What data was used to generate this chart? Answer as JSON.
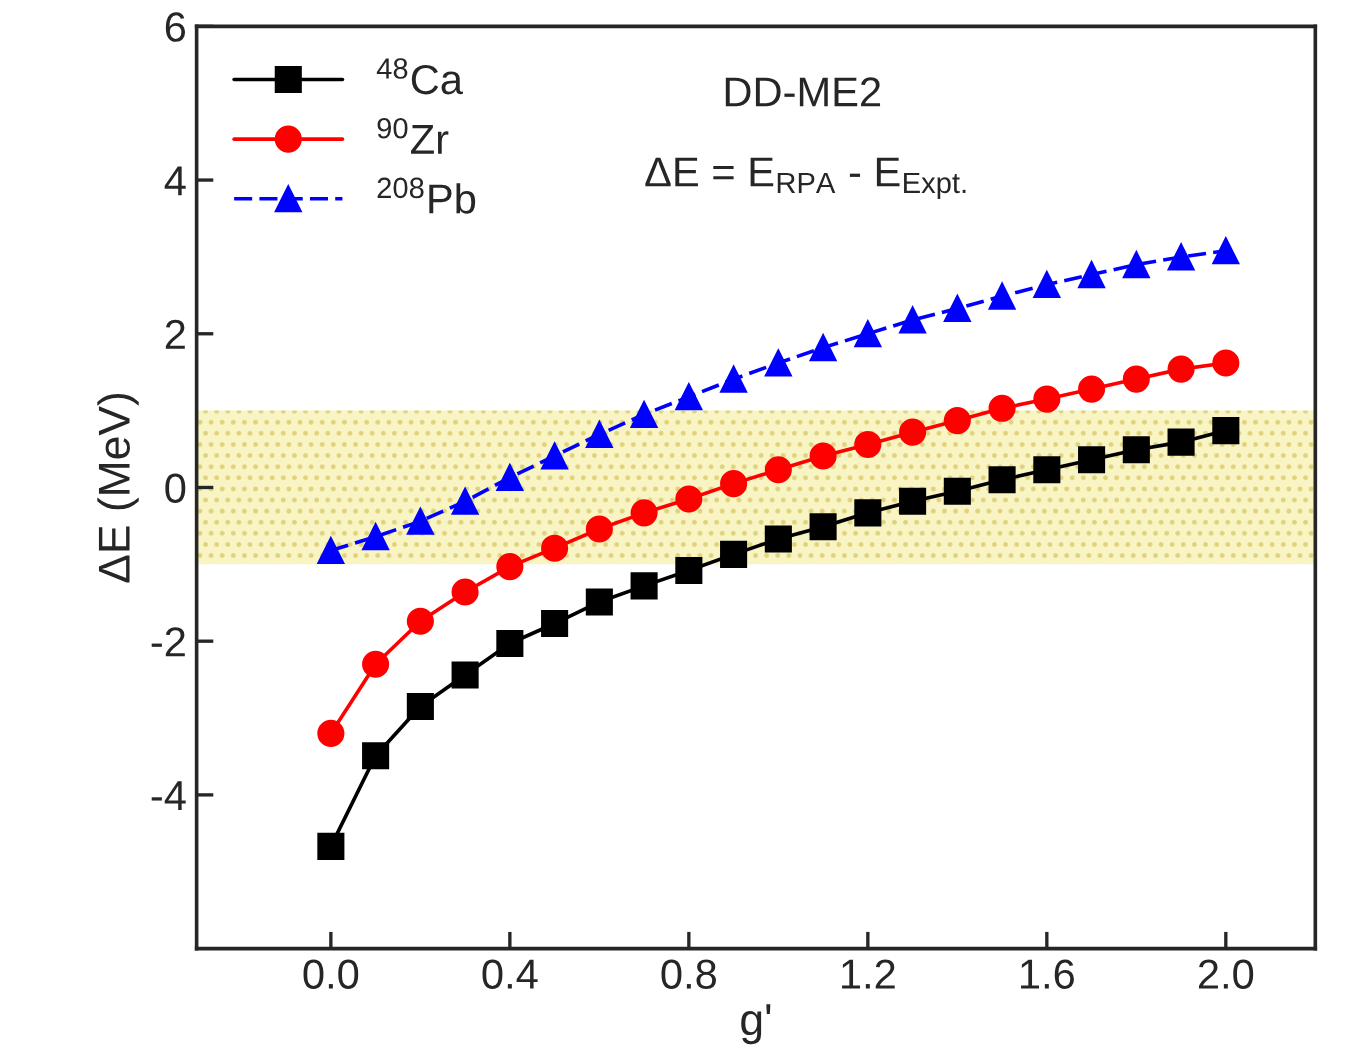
{
  "chart_data": {
    "type": "line",
    "xlabel": "g'",
    "ylabel": "ΔE (MeV)",
    "x": [
      0.0,
      0.1,
      0.2,
      0.3,
      0.4,
      0.5,
      0.6,
      0.7,
      0.8,
      0.9,
      1.0,
      1.1,
      1.2,
      1.3,
      1.4,
      1.5,
      1.6,
      1.7,
      1.8,
      1.9,
      2.0
    ],
    "series": [
      {
        "name": "$^{48}$Ca",
        "color": "#000000",
        "marker": "square",
        "values": [
          -4.67,
          -3.49,
          -2.85,
          -2.44,
          -2.03,
          -1.77,
          -1.49,
          -1.28,
          -1.08,
          -0.87,
          -0.67,
          -0.51,
          -0.33,
          -0.18,
          -0.05,
          0.1,
          0.23,
          0.36,
          0.49,
          0.59,
          0.74
        ]
      },
      {
        "name": "$^{90}$Zr",
        "color": "#ff0000",
        "marker": "circle",
        "values": [
          -3.2,
          -2.3,
          -1.74,
          -1.36,
          -1.03,
          -0.79,
          -0.54,
          -0.33,
          -0.15,
          0.05,
          0.23,
          0.41,
          0.56,
          0.72,
          0.87,
          1.03,
          1.15,
          1.28,
          1.41,
          1.54,
          1.62
        ]
      },
      {
        "name": "$^{208}$Pb",
        "color": "#0000ff",
        "marker": "triangle",
        "line_style": "dashed",
        "values": [
          -0.82,
          -0.64,
          -0.44,
          -0.18,
          0.13,
          0.41,
          0.69,
          0.95,
          1.18,
          1.41,
          1.62,
          1.82,
          2.0,
          2.18,
          2.33,
          2.49,
          2.64,
          2.77,
          2.9,
          3.0,
          3.08
        ]
      }
    ],
    "annotations": [
      "DD-ME2",
      "ΔE = E$_{RPA}$ - E$_{Expt.}$"
    ],
    "bands": [
      {
        "axis": "y",
        "from": -1,
        "to": 1,
        "color": "#f7f2b8"
      }
    ],
    "xlim": [
      -0.3,
      2.2
    ],
    "xticks": [
      {
        "value": 0,
        "label": "0.0"
      },
      0.4,
      0.8,
      1.2,
      1.6,
      {
        "value": 2,
        "label": "2.0"
      }
    ],
    "ylim": [
      -6,
      6
    ],
    "yticks": [
      -4,
      -2,
      0,
      2,
      4,
      6
    ],
    "grid": false,
    "legend": "top left"
  }
}
